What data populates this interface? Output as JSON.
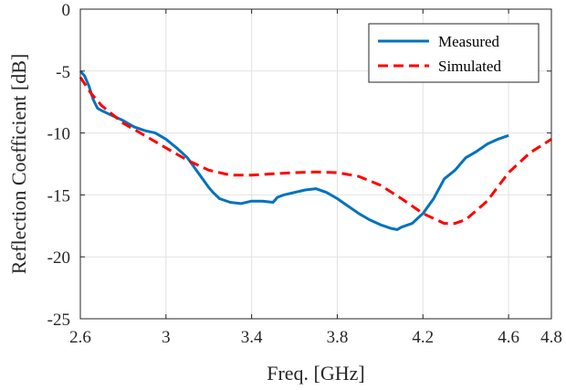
{
  "chart_data": {
    "type": "line",
    "title": "",
    "xlabel": "Freq. [GHz]",
    "ylabel": "Reflection Coefficient [dB]",
    "xlim": [
      2.6,
      4.8
    ],
    "ylim": [
      -25,
      0
    ],
    "xticks": [
      2.6,
      3,
      3.4,
      3.8,
      4.2,
      4.6,
      4.8
    ],
    "xtick_labels": [
      "2.6",
      "3",
      "3.4",
      "3.8",
      "4.2",
      "4.6",
      "4.8"
    ],
    "yticks": [
      0,
      -5,
      -10,
      -15,
      -20,
      -25
    ],
    "ytick_labels": [
      "0",
      "-5",
      "-10",
      "-15",
      "-20",
      "-25"
    ],
    "grid": true,
    "legend_position": "top-right",
    "series": [
      {
        "name": "Measured",
        "color": "#0072BD",
        "style": "solid",
        "x": [
          2.6,
          2.62,
          2.64,
          2.66,
          2.68,
          2.7,
          2.75,
          2.8,
          2.85,
          2.9,
          2.95,
          3.0,
          3.05,
          3.1,
          3.15,
          3.2,
          3.22,
          3.25,
          3.3,
          3.35,
          3.4,
          3.45,
          3.5,
          3.52,
          3.55,
          3.6,
          3.65,
          3.7,
          3.75,
          3.8,
          3.85,
          3.9,
          3.95,
          4.0,
          4.05,
          4.08,
          4.1,
          4.15,
          4.2,
          4.25,
          4.3,
          4.35,
          4.4,
          4.45,
          4.5,
          4.55,
          4.6
        ],
        "y": [
          -5.0,
          -5.4,
          -6.2,
          -7.3,
          -8.0,
          -8.2,
          -8.6,
          -9.0,
          -9.5,
          -9.8,
          -10.0,
          -10.5,
          -11.2,
          -12.0,
          -13.2,
          -14.4,
          -14.8,
          -15.3,
          -15.6,
          -15.7,
          -15.5,
          -15.5,
          -15.6,
          -15.2,
          -15.0,
          -14.8,
          -14.6,
          -14.5,
          -14.8,
          -15.3,
          -15.9,
          -16.5,
          -17.0,
          -17.4,
          -17.7,
          -17.8,
          -17.6,
          -17.3,
          -16.5,
          -15.3,
          -13.7,
          -13.0,
          -12.0,
          -11.5,
          -10.9,
          -10.5,
          -10.2
        ]
      },
      {
        "name": "Simulated",
        "color": "#FF0000",
        "style": "dashed",
        "x": [
          2.6,
          2.65,
          2.7,
          2.8,
          2.9,
          3.0,
          3.1,
          3.2,
          3.3,
          3.4,
          3.5,
          3.6,
          3.7,
          3.8,
          3.9,
          4.0,
          4.1,
          4.2,
          4.3,
          4.35,
          4.4,
          4.5,
          4.6,
          4.7,
          4.8
        ],
        "y": [
          -5.5,
          -6.8,
          -7.8,
          -9.2,
          -10.2,
          -11.2,
          -12.2,
          -13.0,
          -13.4,
          -13.4,
          -13.3,
          -13.2,
          -13.15,
          -13.2,
          -13.5,
          -14.2,
          -15.3,
          -16.5,
          -17.3,
          -17.3,
          -17.0,
          -15.5,
          -13.2,
          -11.6,
          -10.5
        ]
      }
    ]
  }
}
